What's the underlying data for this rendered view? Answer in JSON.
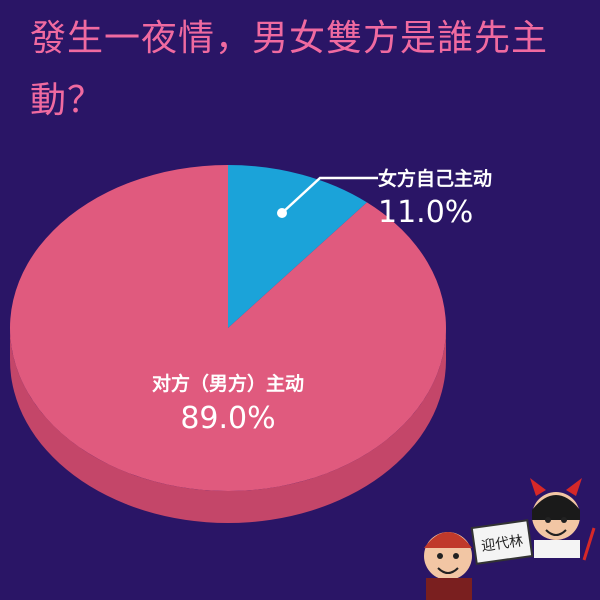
{
  "title": "發生一夜情，男女雙方是誰先主動？",
  "chart_data": {
    "type": "pie",
    "title": "發生一夜情，男女雙方是誰先主動？",
    "slices": [
      {
        "label": "女方自己主动",
        "value": 11.0,
        "display": "11.0%"
      },
      {
        "label": "对方（男方）主动",
        "value": 89.0,
        "display": "89.0%"
      }
    ]
  },
  "colors": {
    "background": "#2a1566",
    "title": "#f06aa0",
    "slice_blue": "#1ba3d9",
    "slice_pink": "#e05a7e",
    "side_pink": "#c44669"
  },
  "watermark": {
    "text": "迎代林"
  }
}
